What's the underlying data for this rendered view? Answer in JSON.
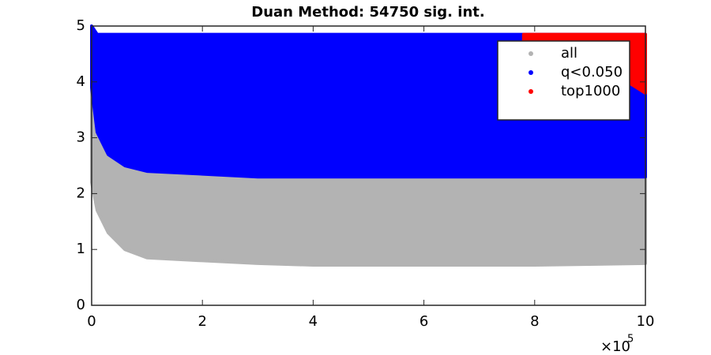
{
  "chart_data": {
    "type": "scatter-band",
    "title": "Duan Method: 54750 sig. int.",
    "xlim": [
      0,
      10
    ],
    "xticks": [
      0,
      2,
      4,
      6,
      8,
      10
    ],
    "x_multiplier_base": "×10",
    "x_multiplier_power": "5",
    "ylim": [
      0,
      5
    ],
    "yticks": [
      0,
      1,
      2,
      3,
      4,
      5
    ],
    "legend_position": "upper-right",
    "series": [
      {
        "name": "all",
        "color": "#b3b3b3",
        "x": [
          0,
          0.1,
          0.3,
          0.6,
          1,
          2,
          3,
          4,
          6,
          8,
          10
        ],
        "lower": [
          2.2,
          1.7,
          1.3,
          1.0,
          0.85,
          0.8,
          0.75,
          0.72,
          0.72,
          0.72,
          0.75
        ],
        "upper": [
          5,
          3.2,
          2.7,
          2.5,
          2.4,
          2.35,
          2.3,
          2.3,
          2.3,
          2.3,
          2.3
        ]
      },
      {
        "name": "q<0.050",
        "color": "#0000ff",
        "x": [
          0,
          0.1,
          0.3,
          0.6,
          1,
          2,
          3,
          4,
          6,
          8,
          10
        ],
        "lower": [
          3.9,
          3.1,
          2.7,
          2.5,
          2.4,
          2.35,
          2.3,
          2.3,
          2.3,
          2.3,
          2.3
        ],
        "upper": [
          5,
          4.85,
          4.85,
          4.85,
          4.85,
          4.85,
          4.85,
          4.85,
          4.85,
          4.85,
          4.85
        ]
      },
      {
        "name": "top1000",
        "color": "#ff0000",
        "x": [
          7.8,
          9.2,
          10
        ],
        "lower": [
          4.75,
          4.3,
          3.8
        ],
        "upper": [
          4.85,
          4.85,
          4.85
        ]
      }
    ]
  }
}
